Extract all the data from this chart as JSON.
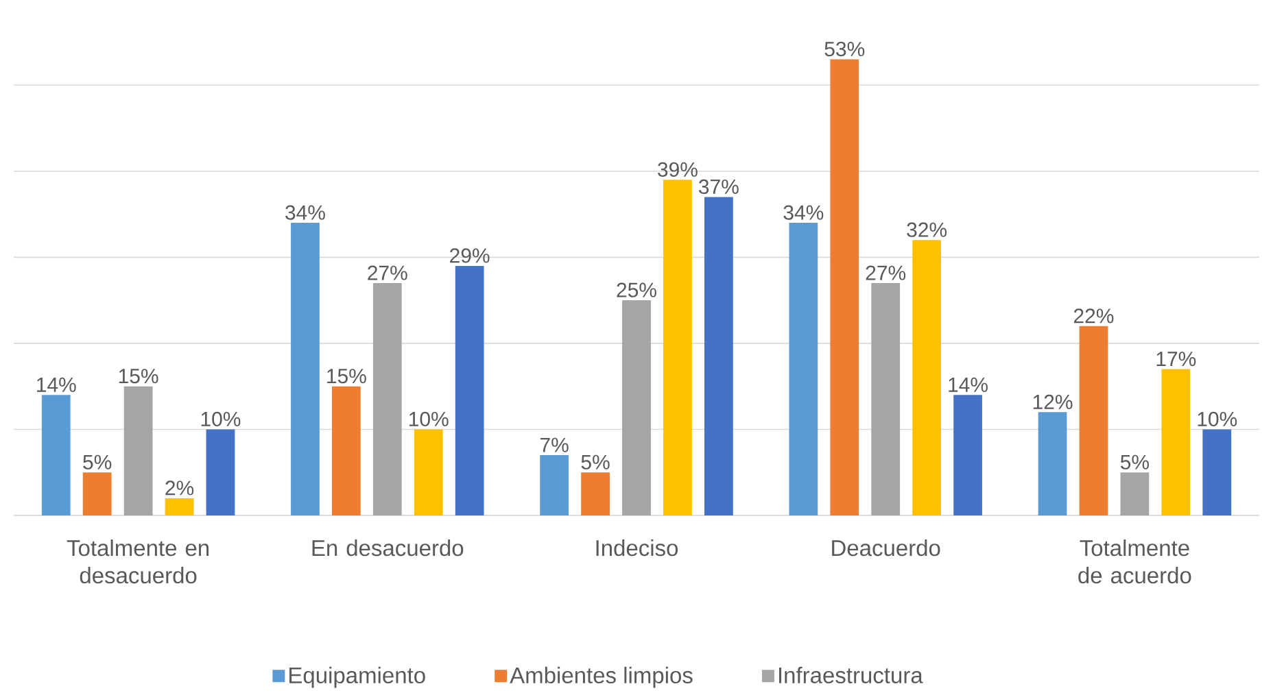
{
  "chart_data": {
    "type": "bar",
    "categories": [
      "Totalmente en desacuerdo",
      "En desacuerdo",
      "Indeciso",
      "Deacuerdo",
      "Totalmente de acuerdo"
    ],
    "series": [
      {
        "name": "Equipamiento",
        "color": "#5b9bd5",
        "values": [
          14,
          34,
          7,
          34,
          12
        ],
        "value_labels": [
          "14%",
          "34%",
          "7%",
          "34%",
          "12%"
        ]
      },
      {
        "name": "Ambientes limpios",
        "color": "#ed7d31",
        "values": [
          5,
          15,
          5,
          53,
          22
        ],
        "value_labels": [
          "5%",
          "15%",
          "5%",
          "53%",
          "22%"
        ]
      },
      {
        "name": "Infraestructura",
        "color": "#a5a5a5",
        "values": [
          15,
          27,
          25,
          27,
          5
        ],
        "value_labels": [
          "15%",
          "27%",
          "25%",
          "27%",
          "5%"
        ]
      },
      {
        "color": "#ffc000",
        "values": [
          2,
          10,
          39,
          32,
          17
        ],
        "value_labels": [
          "2%",
          "10%",
          "39%",
          "32%",
          "17%"
        ]
      },
      {
        "color": "#4472c4",
        "values": [
          10,
          29,
          37,
          14,
          10
        ],
        "value_labels": [
          "10%",
          "29%",
          "37%",
          "14%",
          "10%"
        ]
      }
    ],
    "yticks": [
      {
        "value": 0,
        "label": null
      },
      {
        "value": 10,
        "label": null
      },
      {
        "value": 20,
        "label": null
      },
      {
        "value": 30,
        "label": null
      },
      {
        "value": 40,
        "label": null
      },
      {
        "value": 50,
        "label": null
      }
    ],
    "grid": "y",
    "legend": "bottom",
    "tick_labels": "x"
  }
}
